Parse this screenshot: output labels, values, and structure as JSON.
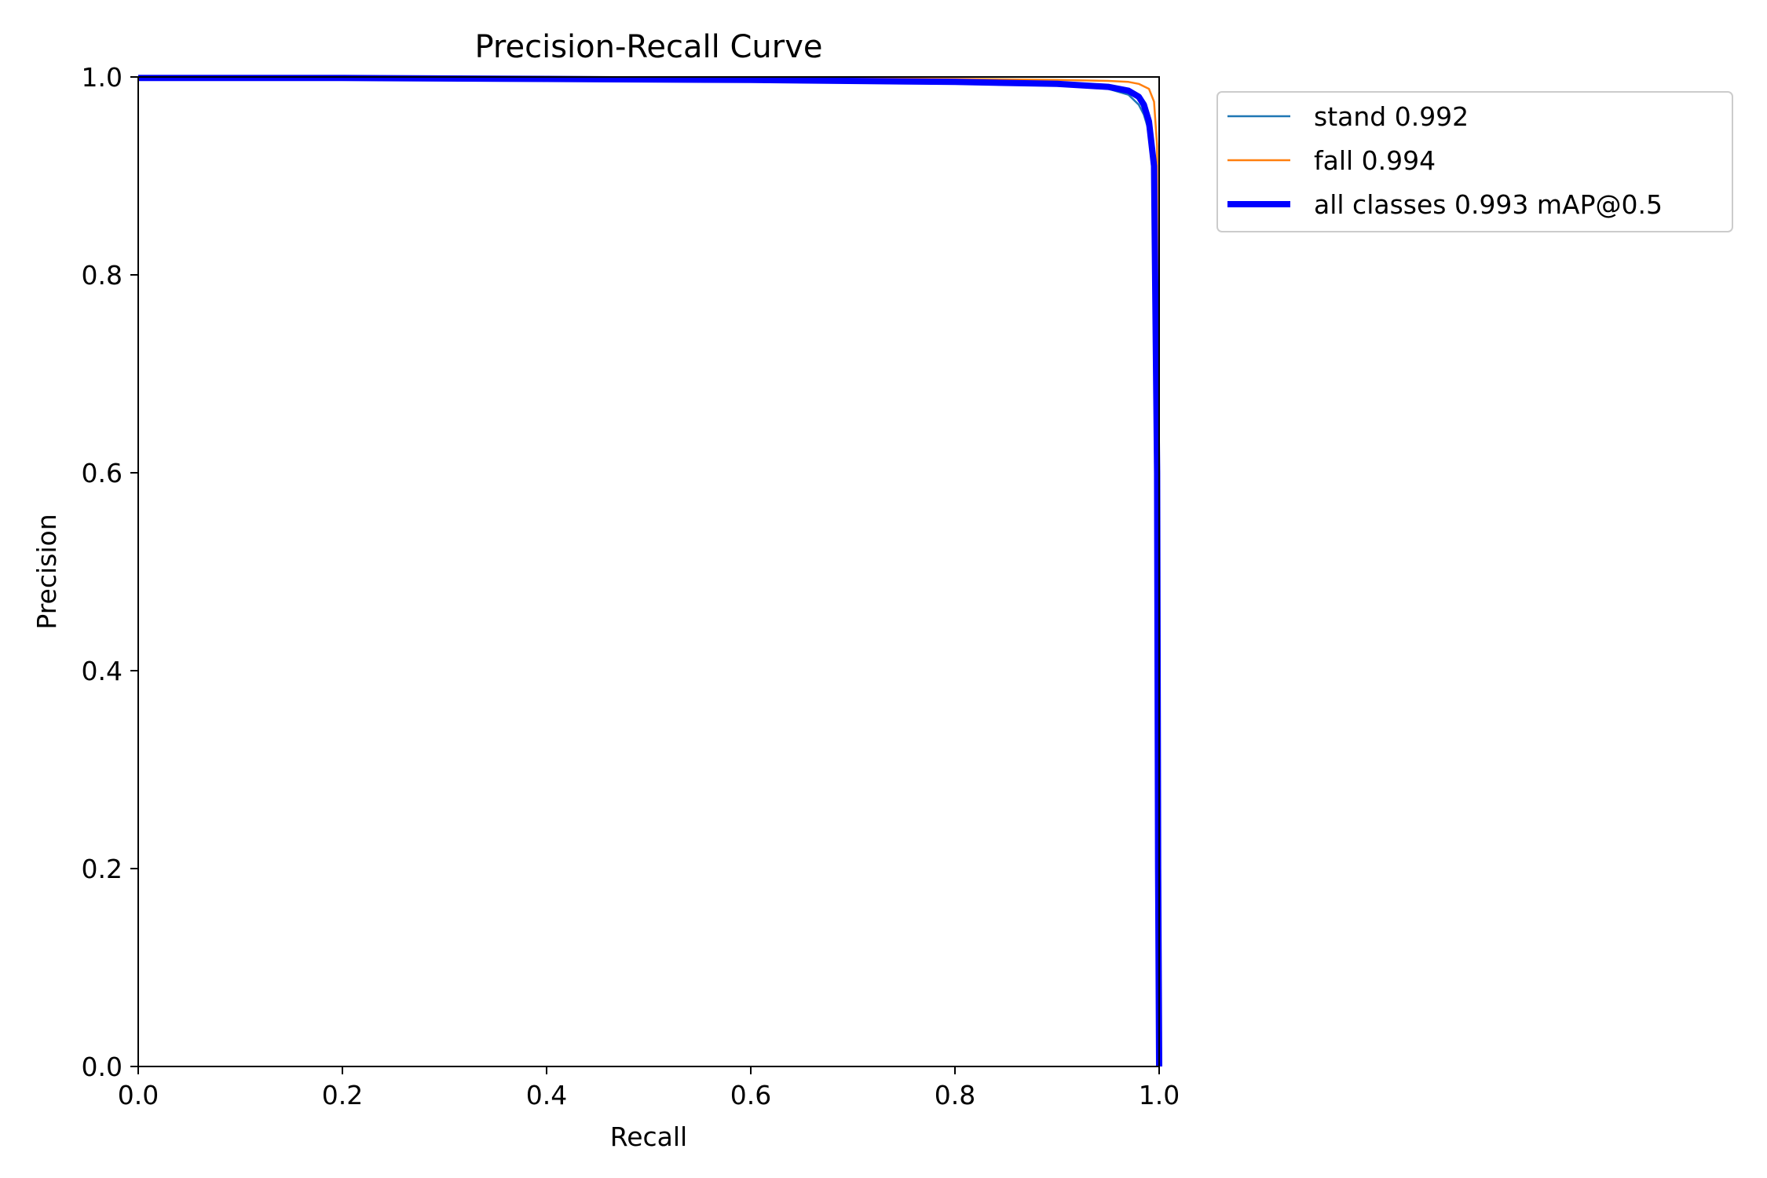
{
  "chart_data": {
    "type": "line",
    "title": "Precision-Recall Curve",
    "xlabel": "Recall",
    "ylabel": "Precision",
    "xlim": [
      0,
      1
    ],
    "ylim": [
      0,
      1
    ],
    "xticks": [
      "0.0",
      "0.2",
      "0.4",
      "0.6",
      "0.8",
      "1.0"
    ],
    "yticks": [
      "0.0",
      "0.2",
      "0.4",
      "0.6",
      "0.8",
      "1.0"
    ],
    "grid": false,
    "legend_position": "outside-top-right",
    "series": [
      {
        "name": "stand 0.992",
        "color": "#1f77b4",
        "x": [
          0.0,
          0.2,
          0.4,
          0.6,
          0.8,
          0.9,
          0.95,
          0.97,
          0.98,
          0.985,
          0.99,
          0.995,
          0.998,
          0.999,
          1.0
        ],
        "y": [
          1.0,
          0.999,
          0.998,
          0.997,
          0.995,
          0.992,
          0.988,
          0.982,
          0.972,
          0.962,
          0.945,
          0.9,
          0.6,
          0.2,
          0.0
        ]
      },
      {
        "name": "fall 0.994",
        "color": "#ff7f0e",
        "x": [
          0.0,
          0.2,
          0.4,
          0.6,
          0.8,
          0.9,
          0.95,
          0.97,
          0.98,
          0.99,
          0.995,
          0.998,
          0.999,
          1.0
        ],
        "y": [
          1.0,
          1.0,
          0.999,
          0.999,
          0.998,
          0.997,
          0.996,
          0.995,
          0.993,
          0.988,
          0.975,
          0.93,
          0.5,
          0.0
        ]
      },
      {
        "name": "all classes 0.993 mAP@0.5",
        "color": "#0000ff",
        "x": [
          0.0,
          0.2,
          0.4,
          0.6,
          0.8,
          0.9,
          0.95,
          0.97,
          0.98,
          0.985,
          0.99,
          0.995,
          0.998,
          0.999,
          1.0
        ],
        "y": [
          0.999,
          0.999,
          0.998,
          0.997,
          0.995,
          0.993,
          0.99,
          0.986,
          0.98,
          0.972,
          0.955,
          0.91,
          0.6,
          0.2,
          0.0
        ]
      }
    ]
  }
}
